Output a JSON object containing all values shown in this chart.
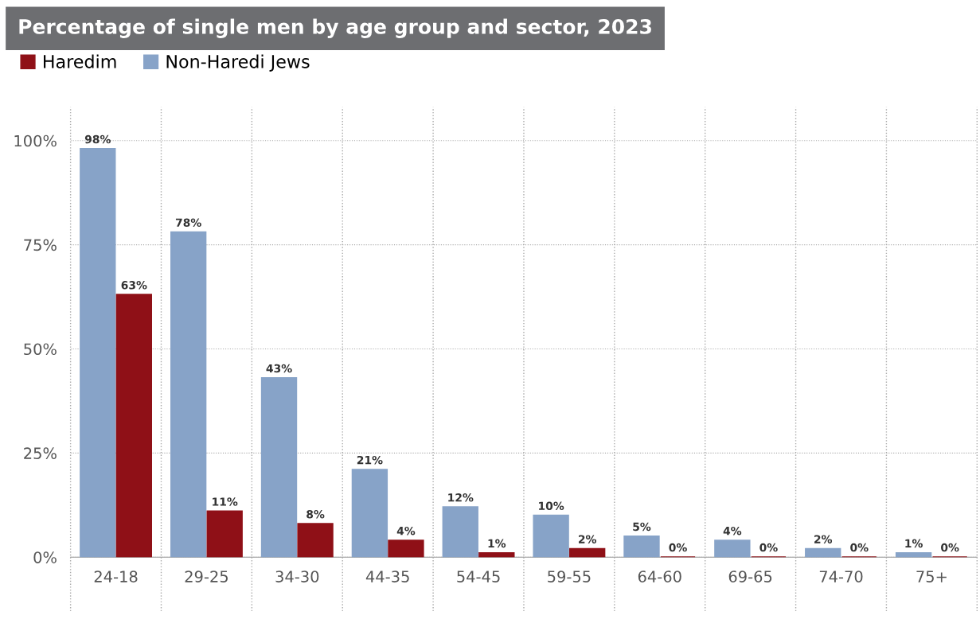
{
  "chart_data": {
    "type": "bar",
    "title": "Percentage of single men by age group and sector, 2023",
    "categories": [
      "24-18",
      "29-25",
      "34-30",
      "44-35",
      "54-45",
      "59-55",
      "64-60",
      "69-65",
      "74-70",
      "75+"
    ],
    "series": [
      {
        "name": "Non-Haredi Jews",
        "color": "#87a3c8",
        "values": [
          98,
          78,
          43,
          21,
          12,
          10,
          5,
          4,
          2,
          1
        ],
        "value_labels": [
          "98%",
          "78%",
          "43%",
          "21%",
          "12%",
          "10%",
          "5%",
          "4%",
          "2%",
          "1%"
        ]
      },
      {
        "name": "Haredim",
        "color": "#8f1017",
        "values": [
          63,
          11,
          8,
          4,
          1,
          2,
          0,
          0,
          0,
          0
        ],
        "value_labels": [
          "63%",
          "11%",
          "8%",
          "4%",
          "1%",
          "2%",
          "0%",
          "0%",
          "0%",
          "0%"
        ]
      }
    ],
    "ylim": [
      0,
      108
    ],
    "yticks": [
      {
        "value": 0,
        "label": "0%"
      },
      {
        "value": 25,
        "label": "25%"
      },
      {
        "value": 50,
        "label": "50%"
      },
      {
        "value": 75,
        "label": "75%"
      },
      {
        "value": 100,
        "label": "100%"
      }
    ],
    "grid": true,
    "legend": "top left"
  }
}
